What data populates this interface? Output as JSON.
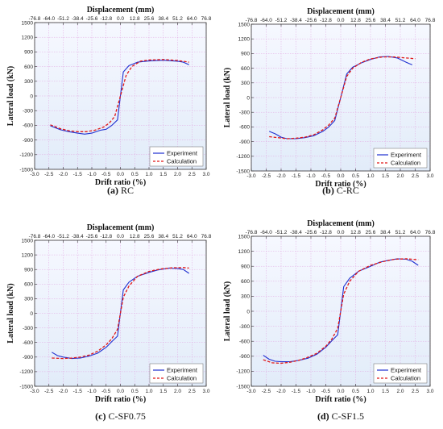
{
  "chart_data": [
    {
      "type": "line",
      "caption_letter": "(a)",
      "caption_name": "RC",
      "xlabel": "Drift ratio (%)",
      "ylabel": "Lateral load (kN)",
      "top_xlabel": "Displacement (mm)",
      "xlim": [
        -3.0,
        3.0
      ],
      "ylim": [
        -1500,
        1500
      ],
      "xticks": [
        "-3.0",
        "-2.5",
        "-2.0",
        "-1.5",
        "-1.0",
        "-0.5",
        "0.0",
        "0.5",
        "1.0",
        "1.5",
        "2.0",
        "2.5",
        "3.0"
      ],
      "yticks": [
        "1500",
        "1200",
        "900",
        "600",
        "300",
        "0",
        "-300",
        "-600",
        "-900",
        "-1200",
        "-1500"
      ],
      "top_ticks": [
        "-76.8",
        "-64.0",
        "-51.2",
        "-38.4",
        "-25.6",
        "-12.8",
        "0.0",
        "12.8",
        "25.6",
        "38.4",
        "51.2",
        "64.0",
        "76.8"
      ],
      "legend": "bottom-right",
      "series": [
        {
          "name": "Experiment",
          "color": "#1f2fd0",
          "style": "solid",
          "x": [
            -2.45,
            -2.1,
            -1.8,
            -1.5,
            -1.25,
            -1.0,
            -0.7,
            -0.5,
            -0.3,
            -0.1,
            0.1,
            0.3,
            0.6,
            1.0,
            1.5,
            2.0,
            2.2,
            2.4
          ],
          "y": [
            -610,
            -690,
            -730,
            -760,
            -780,
            -760,
            -700,
            -680,
            -600,
            -490,
            490,
            620,
            690,
            715,
            730,
            710,
            690,
            640
          ]
        },
        {
          "name": "Calculation",
          "color": "#e01818",
          "style": "dashed",
          "x": [
            -2.45,
            -2.1,
            -1.8,
            -1.5,
            -1.2,
            -0.9,
            -0.6,
            -0.4,
            -0.2,
            0.0,
            0.2,
            0.4,
            0.7,
            1.0,
            1.5,
            2.0,
            2.4
          ],
          "y": [
            -590,
            -670,
            -710,
            -730,
            -730,
            -700,
            -640,
            -560,
            -420,
            0,
            420,
            600,
            710,
            735,
            745,
            725,
            690
          ]
        }
      ]
    },
    {
      "type": "line",
      "caption_letter": "(b)",
      "caption_name": "C-RC",
      "xlabel": "Drift ratio (%)",
      "ylabel": "Lateral load (kN)",
      "top_xlabel": "Displacement (mm)",
      "xlim": [
        -3.0,
        3.0
      ],
      "ylim": [
        -1500,
        1500
      ],
      "xticks": [
        "-3.0",
        "-2.5",
        "-2.0",
        "-1.5",
        "-1.0",
        "-0.5",
        "0.0",
        "0.5",
        "1.0",
        "1.5",
        "2.0",
        "2.5",
        "3.0"
      ],
      "yticks": [
        "1500",
        "1200",
        "900",
        "600",
        "300",
        "0",
        "-300",
        "-600",
        "-900",
        "-1200",
        "-1500"
      ],
      "top_ticks": [
        "-76.8",
        "-64.0",
        "-51.2",
        "-38.4",
        "-25.6",
        "-12.8",
        "0.0",
        "12.8",
        "25.6",
        "38.4",
        "51.2",
        "64.0",
        "76.8"
      ],
      "legend": "bottom-right",
      "series": [
        {
          "name": "Experiment",
          "color": "#1f2fd0",
          "style": "solid",
          "x": [
            -2.4,
            -2.2,
            -2.0,
            -1.8,
            -1.5,
            -1.2,
            -0.9,
            -0.6,
            -0.4,
            -0.2,
            0.0,
            0.2,
            0.4,
            0.7,
            1.0,
            1.3,
            1.6,
            1.9,
            2.2,
            2.4
          ],
          "y": [
            -690,
            -740,
            -810,
            -840,
            -840,
            -820,
            -780,
            -690,
            -600,
            -470,
            0,
            480,
            620,
            710,
            780,
            830,
            840,
            810,
            720,
            670
          ]
        },
        {
          "name": "Calculation",
          "color": "#e01818",
          "style": "dashed",
          "x": [
            -2.4,
            -2.1,
            -1.8,
            -1.5,
            -1.2,
            -0.9,
            -0.6,
            -0.4,
            -0.2,
            0.0,
            0.2,
            0.4,
            0.7,
            1.0,
            1.4,
            1.8,
            2.1,
            2.5
          ],
          "y": [
            -800,
            -820,
            -840,
            -830,
            -810,
            -760,
            -660,
            -560,
            -420,
            0,
            430,
            600,
            720,
            790,
            830,
            830,
            815,
            795
          ]
        }
      ]
    },
    {
      "type": "line",
      "caption_letter": "(c)",
      "caption_name": "C-SF0.75",
      "xlabel": "Drift ratio (%)",
      "ylabel": "Lateral load (kN)",
      "top_xlabel": "Displacement (mm)",
      "xlim": [
        -3.0,
        3.0
      ],
      "ylim": [
        -1500,
        1500
      ],
      "xticks": [
        "-3.0",
        "-2.5",
        "-2.0",
        "-1.5",
        "-1.0",
        "-0.5",
        "0.0",
        "0.5",
        "1.0",
        "1.5",
        "2.0",
        "2.5",
        "3.0"
      ],
      "yticks": [
        "1500",
        "1200",
        "900",
        "600",
        "300",
        "0",
        "-300",
        "-600",
        "-900",
        "-1200",
        "-1500"
      ],
      "top_ticks": [
        "-76.8",
        "-64.0",
        "-51.2",
        "-38.4",
        "-25.6",
        "-12.8",
        "0.0",
        "12.8",
        "25.6",
        "38.4",
        "51.2",
        "64.0",
        "76.8"
      ],
      "legend": "bottom-right",
      "series": [
        {
          "name": "Experiment",
          "color": "#1f2fd0",
          "style": "solid",
          "x": [
            -2.4,
            -2.2,
            -2.0,
            -1.7,
            -1.4,
            -1.1,
            -0.8,
            -0.5,
            -0.3,
            -0.1,
            0.1,
            0.3,
            0.6,
            1.0,
            1.3,
            1.7,
            2.0,
            2.2,
            2.4
          ],
          "y": [
            -800,
            -870,
            -900,
            -930,
            -920,
            -880,
            -820,
            -700,
            -580,
            -470,
            480,
            640,
            760,
            840,
            890,
            930,
            920,
            900,
            820
          ]
        },
        {
          "name": "Calculation",
          "color": "#e01818",
          "style": "dashed",
          "x": [
            -2.4,
            -2.0,
            -1.7,
            -1.4,
            -1.1,
            -0.8,
            -0.5,
            -0.3,
            -0.1,
            0.0,
            0.1,
            0.3,
            0.6,
            1.0,
            1.4,
            1.8,
            2.2,
            2.4
          ],
          "y": [
            -920,
            -930,
            -920,
            -900,
            -860,
            -780,
            -650,
            -520,
            -330,
            0,
            330,
            560,
            760,
            860,
            910,
            935,
            940,
            930
          ]
        }
      ]
    },
    {
      "type": "line",
      "caption_letter": "(d)",
      "caption_name": "C-SF1.5",
      "xlabel": "Drift ratio (%)",
      "ylabel": "Lateral load (kN)",
      "top_xlabel": "Displacement (mm)",
      "xlim": [
        -3.0,
        3.0
      ],
      "ylim": [
        -1500,
        1500
      ],
      "xticks": [
        "-3.0",
        "-2.5",
        "-2.0",
        "-1.5",
        "-1.0",
        "-0.5",
        "0.0",
        "0.5",
        "1.0",
        "1.5",
        "2.0",
        "2.5",
        "3.0"
      ],
      "yticks": [
        "1500",
        "1200",
        "900",
        "600",
        "300",
        "0",
        "-300",
        "-600",
        "-900",
        "-1200",
        "-1500"
      ],
      "top_ticks": [
        "-76.8",
        "-64.0",
        "-51.2",
        "-38.4",
        "-25.6",
        "-12.8",
        "0.0",
        "12.8",
        "25.6",
        "38.4",
        "51.2",
        "64.0",
        "76.8"
      ],
      "legend": "bottom-right",
      "series": [
        {
          "name": "Experiment",
          "color": "#1f2fd0",
          "style": "solid",
          "x": [
            -2.6,
            -2.4,
            -2.2,
            -2.0,
            -1.7,
            -1.4,
            -1.1,
            -0.8,
            -0.5,
            -0.3,
            -0.1,
            0.1,
            0.3,
            0.6,
            1.0,
            1.3,
            1.6,
            1.9,
            2.2,
            2.4,
            2.6
          ],
          "y": [
            -880,
            -960,
            -1000,
            -1010,
            -1010,
            -980,
            -940,
            -860,
            -720,
            -590,
            -470,
            490,
            660,
            800,
            900,
            980,
            1020,
            1050,
            1040,
            1000,
            920
          ]
        },
        {
          "name": "Calculation",
          "color": "#e01818",
          "style": "dashed",
          "x": [
            -2.6,
            -2.3,
            -2.0,
            -1.7,
            -1.4,
            -1.1,
            -0.8,
            -0.5,
            -0.3,
            -0.1,
            0.0,
            0.1,
            0.3,
            0.6,
            1.0,
            1.4,
            1.8,
            2.2,
            2.6
          ],
          "y": [
            -970,
            -1030,
            -1040,
            -1020,
            -980,
            -920,
            -840,
            -700,
            -560,
            -340,
            0,
            340,
            600,
            800,
            920,
            990,
            1040,
            1050,
            1030
          ]
        }
      ]
    }
  ]
}
